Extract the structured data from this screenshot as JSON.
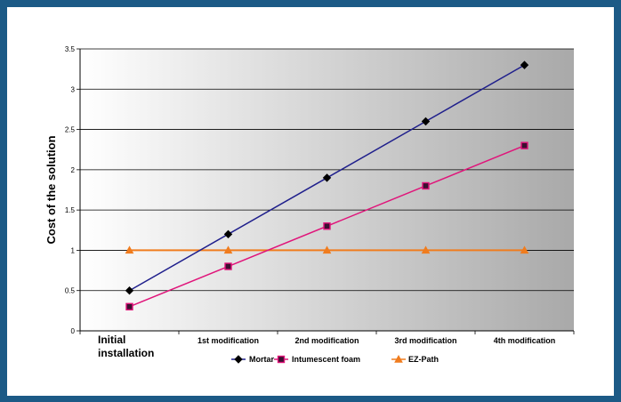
{
  "chart_data": {
    "type": "line",
    "title": "",
    "xlabel": "",
    "ylabel": "Cost of the solution",
    "ylim": [
      0,
      3.5
    ],
    "yticks": [
      "0",
      "0.5",
      "1",
      "1.5",
      "2",
      "2.5",
      "3",
      "3.5"
    ],
    "categories": [
      "Initial installation",
      "1st modification",
      "2nd modification",
      "3rd modification",
      "4th modification"
    ],
    "series": [
      {
        "name": "Mortar",
        "values": [
          0.5,
          1.2,
          1.9,
          2.6,
          3.3
        ],
        "color": "#1f1f8c",
        "marker": "diamond"
      },
      {
        "name": "Intumescent foam",
        "values": [
          0.3,
          0.8,
          1.3,
          1.8,
          2.3
        ],
        "color": "#e0147a",
        "marker": "square"
      },
      {
        "name": "EZ-Path",
        "values": [
          1,
          1,
          1,
          1,
          1
        ],
        "color": "#f07c1e",
        "marker": "triangle"
      }
    ],
    "grid": true,
    "legend_position": "bottom",
    "background": "gradient white to gray",
    "frame_color": "#1c5a86"
  }
}
